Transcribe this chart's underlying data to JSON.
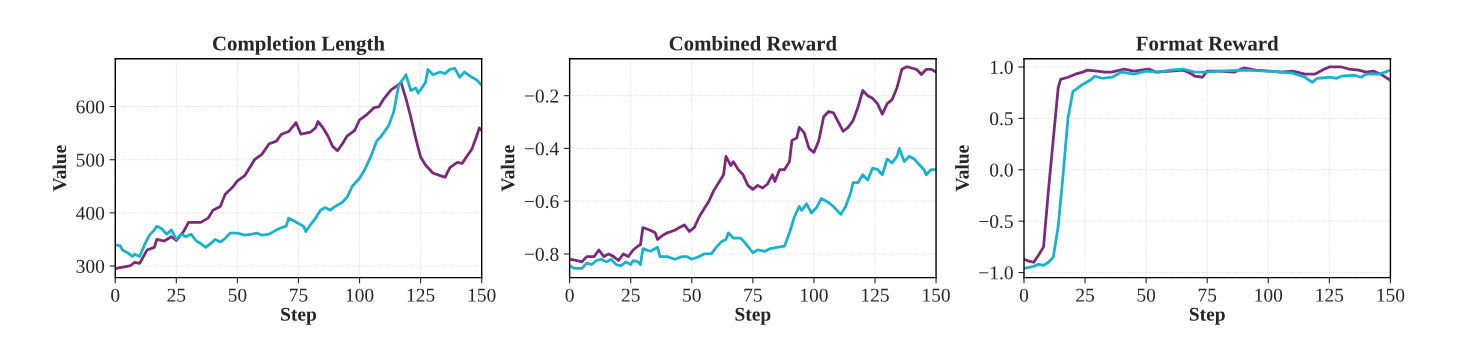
{
  "chart_data": [
    {
      "type": "line",
      "title": "Completion Length",
      "xlabel": "Step",
      "ylabel": "Value",
      "xlim": [
        0,
        150
      ],
      "xticks": [
        0,
        25,
        50,
        75,
        100,
        125,
        150
      ],
      "ylim": [
        278,
        690
      ],
      "yticks": [
        300,
        400,
        500,
        600
      ],
      "grid": true,
      "legend": false,
      "series": [
        {
          "color": "#7b2a7b",
          "x": [
            0,
            3,
            6,
            8,
            10,
            13,
            16,
            17,
            20,
            23,
            25,
            28,
            30,
            35,
            38,
            40,
            43,
            45,
            48,
            50,
            53,
            55,
            57,
            60,
            63,
            66,
            68,
            71,
            74,
            76,
            78,
            80,
            82,
            83,
            85,
            87,
            89,
            91,
            93,
            95,
            98,
            100,
            103,
            106,
            108,
            110,
            113,
            115,
            117,
            119,
            121,
            123,
            125,
            127,
            130,
            133,
            135,
            137,
            140,
            142,
            144,
            146,
            148,
            149,
            150
          ],
          "values": [
            295,
            298,
            300,
            307,
            305,
            330,
            335,
            350,
            347,
            355,
            348,
            365,
            382,
            382,
            390,
            405,
            412,
            435,
            448,
            460,
            470,
            485,
            500,
            510,
            530,
            535,
            548,
            553,
            570,
            548,
            550,
            552,
            560,
            572,
            560,
            545,
            525,
            517,
            530,
            545,
            555,
            575,
            585,
            598,
            600,
            615,
            632,
            638,
            645,
            615,
            580,
            540,
            505,
            490,
            475,
            470,
            467,
            485,
            495,
            493,
            507,
            520,
            545,
            560,
            555
          ]
        },
        {
          "color": "#17b3cc",
          "x": [
            0,
            2,
            3,
            5,
            7,
            8,
            10,
            12,
            14,
            16,
            17,
            19,
            21,
            23,
            25,
            27,
            29,
            31,
            33,
            35,
            37,
            39,
            41,
            43,
            45,
            47,
            50,
            53,
            56,
            58,
            60,
            63,
            66,
            68,
            70,
            71,
            73,
            75,
            77,
            78,
            80,
            82,
            84,
            86,
            88,
            90,
            93,
            95,
            97,
            100,
            102,
            105,
            107,
            109,
            112,
            114,
            116,
            118,
            119,
            121,
            123,
            124,
            127,
            128,
            130,
            133,
            135,
            137,
            139,
            141,
            143,
            146,
            148,
            150
          ],
          "values": [
            340,
            338,
            330,
            325,
            318,
            322,
            318,
            340,
            358,
            368,
            375,
            370,
            360,
            368,
            350,
            360,
            355,
            360,
            348,
            342,
            335,
            342,
            350,
            345,
            352,
            362,
            362,
            358,
            360,
            362,
            358,
            360,
            368,
            372,
            375,
            390,
            385,
            380,
            375,
            365,
            378,
            390,
            405,
            410,
            405,
            412,
            420,
            430,
            450,
            465,
            480,
            510,
            535,
            545,
            565,
            590,
            640,
            653,
            660,
            630,
            635,
            625,
            645,
            670,
            660,
            665,
            662,
            670,
            672,
            655,
            665,
            655,
            650,
            640
          ]
        }
      ]
    },
    {
      "type": "line",
      "title": "Combined Reward",
      "xlabel": "Step",
      "ylabel": "Value",
      "xlim": [
        0,
        150
      ],
      "xticks": [
        0,
        25,
        50,
        75,
        100,
        125,
        150
      ],
      "ylim": [
        -0.89,
        -0.06
      ],
      "yticks": [
        {
          "value": -0.8,
          "label": "−0.8"
        },
        {
          "value": -0.6,
          "label": "−0.6"
        },
        {
          "value": -0.4,
          "label": "−0.4"
        },
        {
          "value": -0.2,
          "label": "−0.2"
        }
      ],
      "grid": true,
      "legend": false,
      "series": [
        {
          "color": "#7b2a7b",
          "x": [
            0,
            3,
            5,
            7,
            10,
            12,
            14,
            16,
            18,
            20,
            22,
            24,
            26,
            28,
            29,
            30,
            33,
            35,
            36,
            38,
            40,
            43,
            45,
            47,
            49,
            51,
            53,
            55,
            57,
            59,
            61,
            63,
            64,
            66,
            67,
            69,
            71,
            73,
            75,
            77,
            79,
            81,
            83,
            84,
            86,
            88,
            90,
            91,
            93,
            94,
            96,
            98,
            100,
            102,
            104,
            106,
            108,
            110,
            112,
            114,
            116,
            118,
            120,
            122,
            124,
            126,
            128,
            130,
            132,
            134,
            136,
            138,
            140,
            142,
            144,
            146,
            148,
            150
          ],
          "values": [
            -0.82,
            -0.825,
            -0.83,
            -0.81,
            -0.81,
            -0.785,
            -0.81,
            -0.8,
            -0.81,
            -0.825,
            -0.8,
            -0.81,
            -0.785,
            -0.77,
            -0.765,
            -0.7,
            -0.71,
            -0.72,
            -0.745,
            -0.73,
            -0.72,
            -0.71,
            -0.7,
            -0.69,
            -0.715,
            -0.7,
            -0.66,
            -0.63,
            -0.6,
            -0.56,
            -0.53,
            -0.5,
            -0.43,
            -0.465,
            -0.45,
            -0.48,
            -0.5,
            -0.54,
            -0.555,
            -0.54,
            -0.55,
            -0.535,
            -0.5,
            -0.525,
            -0.48,
            -0.48,
            -0.45,
            -0.37,
            -0.36,
            -0.32,
            -0.34,
            -0.4,
            -0.415,
            -0.37,
            -0.28,
            -0.26,
            -0.265,
            -0.3,
            -0.335,
            -0.32,
            -0.295,
            -0.245,
            -0.18,
            -0.2,
            -0.21,
            -0.23,
            -0.27,
            -0.23,
            -0.215,
            -0.17,
            -0.1,
            -0.09,
            -0.095,
            -0.1,
            -0.12,
            -0.1,
            -0.1,
            -0.11
          ]
        },
        {
          "color": "#17b3cc",
          "x": [
            0,
            2,
            5,
            7,
            9,
            11,
            13,
            15,
            17,
            19,
            21,
            23,
            25,
            26,
            28,
            29,
            30,
            33,
            36,
            37,
            40,
            43,
            46,
            48,
            50,
            53,
            55,
            58,
            60,
            62,
            64,
            65,
            67,
            70,
            72,
            75,
            77,
            80,
            82,
            85,
            88,
            90,
            92,
            94,
            95,
            97,
            99,
            101,
            103,
            106,
            108,
            111,
            113,
            115,
            116,
            118,
            120,
            122,
            124,
            126,
            128,
            130,
            132,
            134,
            135,
            137,
            139,
            141,
            143,
            145,
            146,
            148,
            150
          ],
          "values": [
            -0.845,
            -0.855,
            -0.855,
            -0.835,
            -0.84,
            -0.825,
            -0.82,
            -0.83,
            -0.82,
            -0.84,
            -0.845,
            -0.83,
            -0.84,
            -0.825,
            -0.83,
            -0.84,
            -0.78,
            -0.79,
            -0.775,
            -0.81,
            -0.81,
            -0.82,
            -0.81,
            -0.81,
            -0.82,
            -0.81,
            -0.8,
            -0.8,
            -0.775,
            -0.755,
            -0.745,
            -0.72,
            -0.74,
            -0.74,
            -0.76,
            -0.795,
            -0.785,
            -0.79,
            -0.78,
            -0.775,
            -0.77,
            -0.72,
            -0.66,
            -0.62,
            -0.635,
            -0.61,
            -0.645,
            -0.625,
            -0.59,
            -0.605,
            -0.62,
            -0.65,
            -0.62,
            -0.57,
            -0.53,
            -0.53,
            -0.5,
            -0.52,
            -0.475,
            -0.48,
            -0.5,
            -0.44,
            -0.455,
            -0.43,
            -0.4,
            -0.45,
            -0.43,
            -0.44,
            -0.46,
            -0.48,
            -0.5,
            -0.48,
            -0.48
          ]
        }
      ]
    },
    {
      "type": "line",
      "title": "Format Reward",
      "xlabel": "Step",
      "ylabel": "Value",
      "xlim": [
        0,
        150
      ],
      "xticks": [
        0,
        25,
        50,
        75,
        100,
        125,
        150
      ],
      "ylim": [
        -1.05,
        1.08
      ],
      "yticks": [
        {
          "value": -1.0,
          "label": "−1.0"
        },
        {
          "value": -0.5,
          "label": "−0.5"
        },
        {
          "value": 0.0,
          "label": "0.0"
        },
        {
          "value": 0.5,
          "label": "0.5"
        },
        {
          "value": 1.0,
          "label": "1.0"
        }
      ],
      "grid": true,
      "legend": false,
      "series": [
        {
          "color": "#7b2a7b",
          "x": [
            0,
            2,
            4,
            6,
            8,
            10,
            12,
            14,
            15,
            18,
            21,
            24,
            26,
            30,
            33,
            36,
            41,
            45,
            51,
            54,
            60,
            65,
            68,
            70,
            73,
            75,
            80,
            86,
            90,
            95,
            100,
            105,
            110,
            115,
            119,
            123,
            125,
            130,
            133,
            137,
            140,
            143,
            146,
            150
          ],
          "values": [
            -0.87,
            -0.89,
            -0.9,
            -0.83,
            -0.75,
            -0.2,
            0.3,
            0.8,
            0.88,
            0.9,
            0.93,
            0.95,
            0.97,
            0.96,
            0.95,
            0.95,
            0.98,
            0.96,
            0.98,
            0.95,
            0.96,
            0.97,
            0.94,
            0.91,
            0.9,
            0.96,
            0.96,
            0.95,
            0.99,
            0.97,
            0.96,
            0.95,
            0.96,
            0.93,
            0.93,
            0.98,
            1.0,
            1.0,
            0.98,
            0.97,
            0.95,
            0.96,
            0.93,
            0.87
          ]
        },
        {
          "color": "#17b3cc",
          "x": [
            0,
            4,
            6,
            8,
            10,
            12,
            14,
            16,
            18,
            20,
            24,
            27,
            29,
            32,
            36,
            40,
            45,
            50,
            55,
            60,
            65,
            70,
            75,
            80,
            90,
            100,
            110,
            115,
            118,
            120,
            125,
            128,
            130,
            135,
            138,
            140,
            145,
            148,
            150
          ],
          "values": [
            -0.96,
            -0.94,
            -0.92,
            -0.93,
            -0.9,
            -0.85,
            -0.55,
            -0.05,
            0.5,
            0.76,
            0.83,
            0.87,
            0.91,
            0.89,
            0.9,
            0.95,
            0.93,
            0.96,
            0.95,
            0.97,
            0.98,
            0.95,
            0.95,
            0.96,
            0.97,
            0.96,
            0.94,
            0.9,
            0.85,
            0.89,
            0.9,
            0.89,
            0.91,
            0.92,
            0.9,
            0.93,
            0.93,
            0.95,
            0.97
          ]
        }
      ]
    }
  ]
}
